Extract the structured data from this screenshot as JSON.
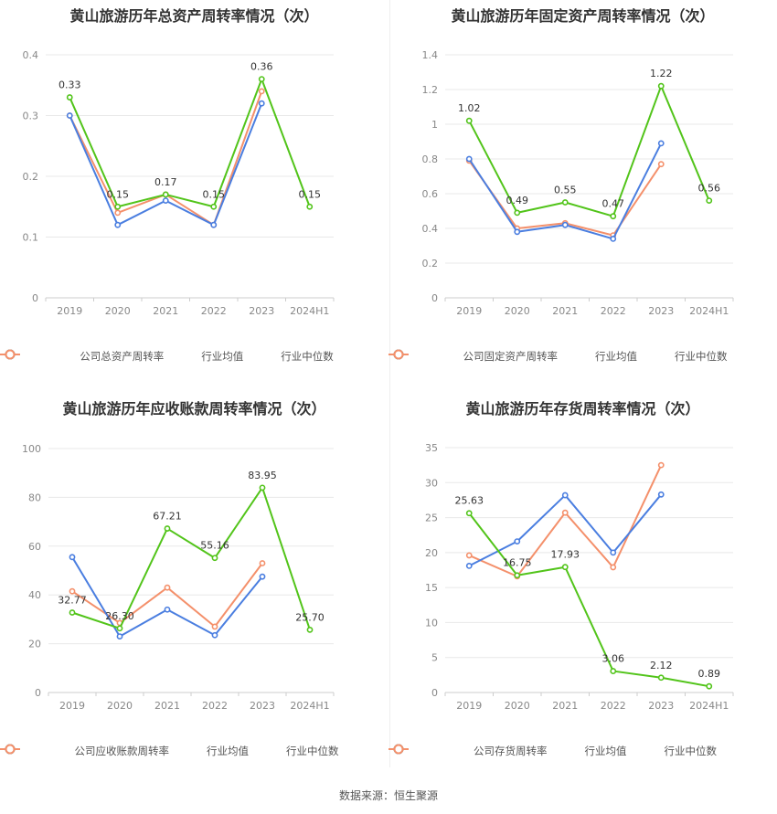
{
  "source": "数据来源：恒生聚源",
  "legend_labels": {
    "industry_avg": "行业均值",
    "industry_median": "行业中位数"
  },
  "colors": {
    "company": "#52c41a",
    "avg": "#4a7ee0",
    "median": "#f4906b",
    "grid": "#e8e8e8",
    "axis": "#cccccc"
  },
  "chart_data": [
    {
      "type": "line",
      "title": "黄山旅游历年总资产周转率情况（次）",
      "categories": [
        "2019",
        "2020",
        "2021",
        "2022",
        "2023",
        "2024H1"
      ],
      "ylim": [
        0,
        0.4
      ],
      "yticks": [
        "0",
        "0.1",
        "0.2",
        "0.3",
        "0.4"
      ],
      "ytick_values": [
        0,
        0.1,
        0.2,
        0.3,
        0.4
      ],
      "series": [
        {
          "name": "公司总资产周转率",
          "values": [
            0.33,
            0.15,
            0.17,
            0.15,
            0.36,
            0.15
          ],
          "labels": [
            "0.33",
            "0.15",
            "0.17",
            "0.15",
            "0.36",
            "0.15"
          ]
        },
        {
          "name": "行业均值",
          "values": [
            0.3,
            0.12,
            0.16,
            0.12,
            0.32,
            null
          ]
        },
        {
          "name": "行业中位数",
          "values": [
            0.3,
            0.14,
            0.17,
            0.12,
            0.34,
            null
          ]
        }
      ],
      "grid": true,
      "legend": "bottom"
    },
    {
      "type": "line",
      "title": "黄山旅游历年固定资产周转率情况（次）",
      "categories": [
        "2019",
        "2020",
        "2021",
        "2022",
        "2023",
        "2024H1"
      ],
      "ylim": [
        0,
        1.4
      ],
      "yticks": [
        "0",
        "0.2",
        "0.4",
        "0.6",
        "0.8",
        "1",
        "1.2",
        "1.4"
      ],
      "ytick_values": [
        0,
        0.2,
        0.4,
        0.6,
        0.8,
        1.0,
        1.2,
        1.4
      ],
      "series": [
        {
          "name": "公司固定资产周转率",
          "values": [
            1.02,
            0.49,
            0.55,
            0.47,
            1.22,
            0.56
          ],
          "labels": [
            "1.02",
            "0.49",
            "0.55",
            "0.47",
            "1.22",
            "0.56"
          ]
        },
        {
          "name": "行业均值",
          "values": [
            0.8,
            0.38,
            0.42,
            0.34,
            0.89,
            null
          ]
        },
        {
          "name": "行业中位数",
          "values": [
            0.79,
            0.4,
            0.43,
            0.36,
            0.77,
            null
          ]
        }
      ],
      "grid": true,
      "legend": "bottom"
    },
    {
      "type": "line",
      "title": "黄山旅游历年应收账款周转率情况（次）",
      "categories": [
        "2019",
        "2020",
        "2021",
        "2022",
        "2023",
        "2024H1"
      ],
      "ylim": [
        0,
        100
      ],
      "yticks": [
        "0",
        "20",
        "40",
        "60",
        "80",
        "100"
      ],
      "ytick_values": [
        0,
        20,
        40,
        60,
        80,
        100
      ],
      "series": [
        {
          "name": "公司应收账款周转率",
          "values": [
            32.77,
            26.3,
            67.21,
            55.16,
            83.95,
            25.7
          ],
          "labels": [
            "32.77",
            "26.30",
            "67.21",
            "55.16",
            "83.95",
            "25.70"
          ]
        },
        {
          "name": "行业均值",
          "values": [
            55.5,
            23.0,
            34.0,
            23.5,
            47.5,
            null
          ]
        },
        {
          "name": "行业中位数",
          "values": [
            41.5,
            28.5,
            43.0,
            27.0,
            53.0,
            null
          ]
        }
      ],
      "grid": true,
      "legend": "bottom"
    },
    {
      "type": "line",
      "title": "黄山旅游历年存货周转率情况（次）",
      "categories": [
        "2019",
        "2020",
        "2021",
        "2022",
        "2023",
        "2024H1"
      ],
      "ylim": [
        0,
        35
      ],
      "yticks": [
        "0",
        "5",
        "10",
        "15",
        "20",
        "25",
        "30",
        "35"
      ],
      "ytick_values": [
        0,
        5,
        10,
        15,
        20,
        25,
        30,
        35
      ],
      "series": [
        {
          "name": "公司存货周转率",
          "values": [
            25.63,
            16.75,
            17.93,
            3.06,
            2.12,
            0.89
          ],
          "labels": [
            "25.63",
            "16.75",
            "17.93",
            "3.06",
            "2.12",
            "0.89"
          ]
        },
        {
          "name": "行业均值",
          "values": [
            18.1,
            21.6,
            28.2,
            20.0,
            28.3,
            null
          ]
        },
        {
          "name": "行业中位数",
          "values": [
            19.6,
            16.6,
            25.7,
            17.9,
            32.5,
            null
          ]
        }
      ],
      "grid": true,
      "legend": "bottom"
    }
  ]
}
